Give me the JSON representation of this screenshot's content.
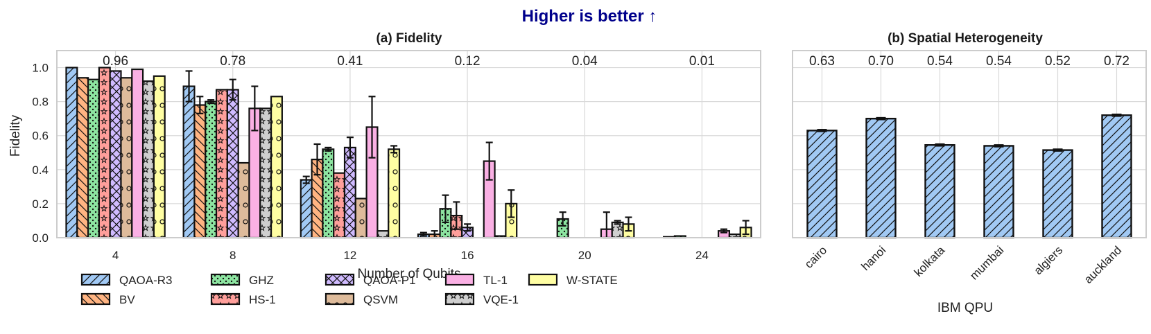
{
  "suptitle": "Higher is better ↑",
  "colors": {
    "suptitle": "#00008b",
    "grid": "#d9d9d9",
    "frame": "#cccccc",
    "edge": "#111111"
  },
  "chart_data": [
    {
      "type": "bar",
      "title": "(a) Fidelity",
      "xlabel": "Number of Qubits",
      "ylabel": "Fidelity",
      "ylim": [
        0,
        1.1
      ],
      "yticks": [
        "0.0",
        "0.2",
        "0.4",
        "0.6",
        "0.8",
        "1.0"
      ],
      "grid": true,
      "legend_position": "bottom",
      "categories": [
        "4",
        "8",
        "12",
        "16",
        "20",
        "24"
      ],
      "annotations": [
        "0.96",
        "0.78",
        "0.41",
        "0.12",
        "0.04",
        "0.01"
      ],
      "series": [
        {
          "name": "QAOA-R3",
          "color": "#a1c9f4",
          "hatch": "slash",
          "values": [
            1.0,
            0.89,
            0.34,
            0.02,
            0.0,
            0.0
          ],
          "errors": [
            0.0,
            0.09,
            0.02,
            0.01,
            0.0,
            0.0
          ]
        },
        {
          "name": "BV",
          "color": "#ffb482",
          "hatch": "backslash",
          "values": [
            0.94,
            0.78,
            0.46,
            0.02,
            0.0,
            0.005
          ],
          "errors": [
            0.0,
            0.05,
            0.09,
            0.02,
            0.0,
            0.0
          ]
        },
        {
          "name": "GHZ",
          "color": "#8de5a1",
          "hatch": "dots",
          "values": [
            0.93,
            0.8,
            0.52,
            0.17,
            0.11,
            0.01
          ],
          "errors": [
            0.0,
            0.01,
            0.01,
            0.08,
            0.04,
            0.0
          ]
        },
        {
          "name": "HS-1",
          "color": "#ff9f9b",
          "hatch": "stars",
          "values": [
            1.0,
            0.87,
            0.38,
            0.13,
            0.0,
            0.0
          ],
          "errors": [
            0.0,
            0.0,
            0.0,
            0.08,
            0.0,
            0.0
          ]
        },
        {
          "name": "QAOA-P1",
          "color": "#d0bbff",
          "hatch": "cross",
          "values": [
            0.98,
            0.87,
            0.53,
            0.06,
            0.0,
            0.0
          ],
          "errors": [
            0.0,
            0.06,
            0.06,
            0.02,
            0.0,
            0.0
          ]
        },
        {
          "name": "QSVM",
          "color": "#debb9b",
          "hatch": "circles",
          "values": [
            0.94,
            0.44,
            0.23,
            0.0,
            0.0,
            0.0
          ],
          "errors": [
            0.0,
            0.0,
            0.0,
            0.0,
            0.0,
            0.0
          ]
        },
        {
          "name": "TL-1",
          "color": "#fab0e4",
          "hatch": "none",
          "values": [
            0.99,
            0.76,
            0.65,
            0.45,
            0.05,
            0.04
          ],
          "errors": [
            0.0,
            0.13,
            0.18,
            0.11,
            0.1,
            0.01
          ]
        },
        {
          "name": "VQE-1",
          "color": "#cfcfcf",
          "hatch": "stars",
          "values": [
            0.92,
            0.76,
            0.04,
            0.01,
            0.09,
            0.02
          ],
          "errors": [
            0.0,
            0.0,
            0.0,
            0.0,
            0.01,
            0.0
          ]
        },
        {
          "name": "W-STATE",
          "color": "#fffea3",
          "hatch": "circles",
          "values": [
            0.95,
            0.83,
            0.52,
            0.2,
            0.08,
            0.06
          ],
          "errors": [
            0.0,
            0.0,
            0.02,
            0.08,
            0.04,
            0.04
          ]
        }
      ]
    },
    {
      "type": "bar",
      "title": "(b) Spatial Heterogeneity",
      "xlabel": "IBM QPU",
      "ylabel": "",
      "ylim": [
        0,
        1.1
      ],
      "grid": true,
      "categories": [
        "cairo",
        "hanoi",
        "kolkata",
        "mumbai",
        "algiers",
        "auckland"
      ],
      "annotations": [
        "0.63",
        "0.70",
        "0.54",
        "0.54",
        "0.52",
        "0.72"
      ],
      "color": "#a1c9f4",
      "hatch": "slash",
      "values": [
        0.63,
        0.7,
        0.545,
        0.54,
        0.515,
        0.72
      ],
      "errors": [
        0.005,
        0.005,
        0.005,
        0.005,
        0.005,
        0.005
      ]
    }
  ]
}
